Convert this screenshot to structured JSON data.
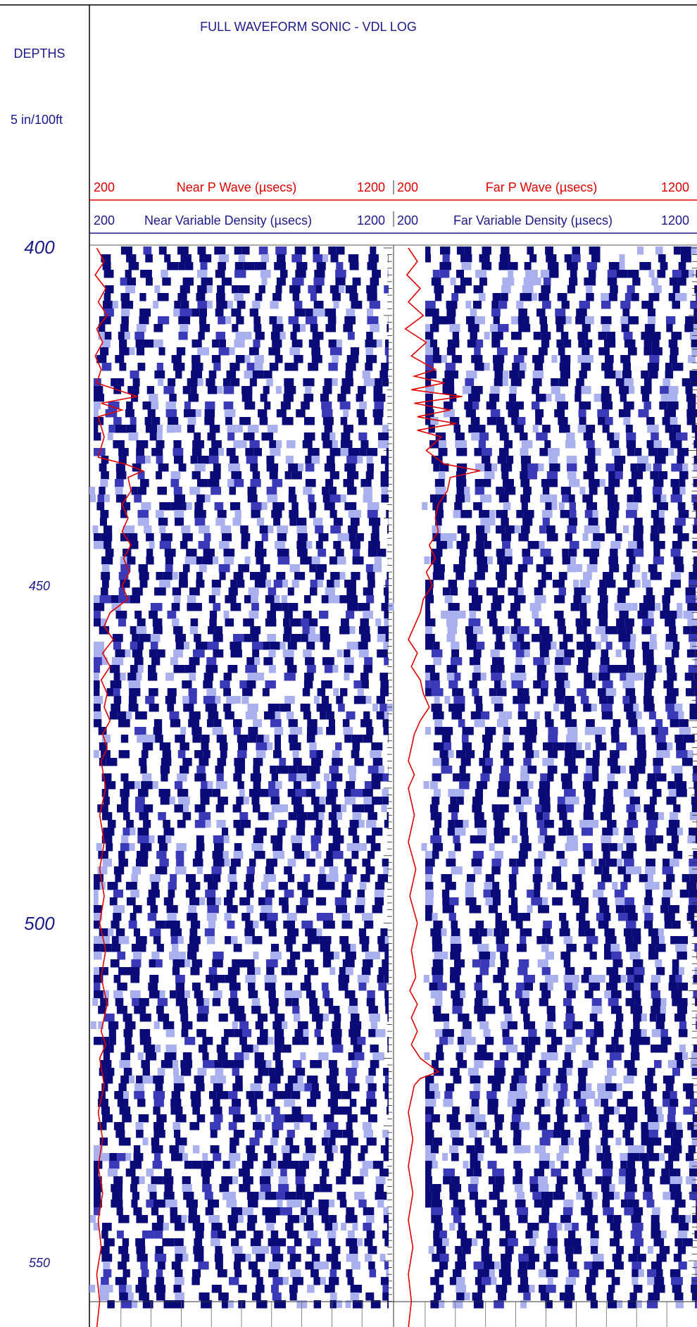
{
  "header": {
    "title": "FULL WAVEFORM SONIC - VDL LOG",
    "depths_label": "DEPTHS",
    "scale_label": "5 in/100ft"
  },
  "colors": {
    "blue": "#1a1a8c",
    "red": "#e00000",
    "vdl_dark": "#0a0a78",
    "vdl_mid": "#3a3ab8",
    "vdl_light": "#aab0ee"
  },
  "chart_data": {
    "type": "vdl_log",
    "title": "FULL WAVEFORM SONIC - VDL LOG",
    "depth_unit_scale": "5 in/100ft",
    "depth_range": [
      400,
      560
    ],
    "depth_labels": [
      "400",
      "450",
      "500",
      "550"
    ],
    "tracks": [
      {
        "key": "near",
        "wave_curve": {
          "name": "Near P Wave (µsecs)",
          "min_label": "200",
          "max_label": "1200",
          "range": [
            200,
            1200
          ]
        },
        "vdl": {
          "name": "Near Variable Density (µsecs)",
          "min_label": "200",
          "max_label": "1200",
          "range": [
            200,
            1200
          ]
        },
        "wave_transit_time": [
          {
            "depth": 400,
            "value": 215
          },
          {
            "depth": 402,
            "value": 240
          },
          {
            "depth": 404,
            "value": 210
          },
          {
            "depth": 406,
            "value": 245
          },
          {
            "depth": 408,
            "value": 220
          },
          {
            "depth": 410,
            "value": 250
          },
          {
            "depth": 412,
            "value": 215
          },
          {
            "depth": 414,
            "value": 235
          },
          {
            "depth": 416,
            "value": 210
          },
          {
            "depth": 418,
            "value": 230
          },
          {
            "depth": 420,
            "value": 215
          },
          {
            "depth": 422,
            "value": 350
          },
          {
            "depth": 423,
            "value": 230
          },
          {
            "depth": 424,
            "value": 300
          },
          {
            "depth": 425,
            "value": 220
          },
          {
            "depth": 428,
            "value": 240
          },
          {
            "depth": 431,
            "value": 220
          },
          {
            "depth": 432,
            "value": 310
          },
          {
            "depth": 433,
            "value": 370
          },
          {
            "depth": 434,
            "value": 320
          },
          {
            "depth": 436,
            "value": 330
          },
          {
            "depth": 438,
            "value": 300
          },
          {
            "depth": 440,
            "value": 320
          },
          {
            "depth": 442,
            "value": 300
          },
          {
            "depth": 444,
            "value": 330
          },
          {
            "depth": 446,
            "value": 305
          },
          {
            "depth": 448,
            "value": 325
          },
          {
            "depth": 450,
            "value": 300
          },
          {
            "depth": 452,
            "value": 320
          },
          {
            "depth": 454,
            "value": 260
          },
          {
            "depth": 456,
            "value": 240
          },
          {
            "depth": 458,
            "value": 270
          },
          {
            "depth": 460,
            "value": 235
          },
          {
            "depth": 462,
            "value": 260
          },
          {
            "depth": 464,
            "value": 230
          },
          {
            "depth": 466,
            "value": 250
          },
          {
            "depth": 468,
            "value": 240
          },
          {
            "depth": 470,
            "value": 260
          },
          {
            "depth": 472,
            "value": 235
          },
          {
            "depth": 474,
            "value": 250
          },
          {
            "depth": 476,
            "value": 230
          },
          {
            "depth": 480,
            "value": 245
          },
          {
            "depth": 484,
            "value": 225
          },
          {
            "depth": 488,
            "value": 240
          },
          {
            "depth": 492,
            "value": 225
          },
          {
            "depth": 496,
            "value": 240
          },
          {
            "depth": 500,
            "value": 225
          },
          {
            "depth": 504,
            "value": 245
          },
          {
            "depth": 508,
            "value": 230
          },
          {
            "depth": 512,
            "value": 250
          },
          {
            "depth": 516,
            "value": 230
          },
          {
            "depth": 518,
            "value": 245
          },
          {
            "depth": 520,
            "value": 225
          },
          {
            "depth": 524,
            "value": 240
          },
          {
            "depth": 528,
            "value": 220
          },
          {
            "depth": 532,
            "value": 235
          },
          {
            "depth": 536,
            "value": 220
          },
          {
            "depth": 540,
            "value": 235
          },
          {
            "depth": 544,
            "value": 220
          },
          {
            "depth": 548,
            "value": 230
          },
          {
            "depth": 552,
            "value": 215
          },
          {
            "depth": 556,
            "value": 225
          },
          {
            "depth": 560,
            "value": 215
          }
        ]
      },
      {
        "key": "far",
        "wave_curve": {
          "name": "Far P Wave (µsecs)",
          "min_label": "200",
          "max_label": "1200",
          "range": [
            200,
            1200
          ]
        },
        "vdl": {
          "name": "Far Variable Density (µsecs)",
          "min_label": "200",
          "max_label": "1200",
          "range": [
            200,
            1200
          ]
        },
        "wave_transit_time": [
          {
            "depth": 400,
            "value": 240
          },
          {
            "depth": 402,
            "value": 270
          },
          {
            "depth": 404,
            "value": 235
          },
          {
            "depth": 406,
            "value": 280
          },
          {
            "depth": 408,
            "value": 240
          },
          {
            "depth": 410,
            "value": 290
          },
          {
            "depth": 412,
            "value": 230
          },
          {
            "depth": 414,
            "value": 300
          },
          {
            "depth": 416,
            "value": 250
          },
          {
            "depth": 418,
            "value": 330
          },
          {
            "depth": 419,
            "value": 260
          },
          {
            "depth": 420,
            "value": 360
          },
          {
            "depth": 421,
            "value": 250
          },
          {
            "depth": 422,
            "value": 420
          },
          {
            "depth": 423,
            "value": 260
          },
          {
            "depth": 424,
            "value": 380
          },
          {
            "depth": 425,
            "value": 270
          },
          {
            "depth": 426,
            "value": 400
          },
          {
            "depth": 427,
            "value": 270
          },
          {
            "depth": 428,
            "value": 350
          },
          {
            "depth": 430,
            "value": 300
          },
          {
            "depth": 432,
            "value": 360
          },
          {
            "depth": 433,
            "value": 480
          },
          {
            "depth": 434,
            "value": 380
          },
          {
            "depth": 436,
            "value": 370
          },
          {
            "depth": 438,
            "value": 340
          },
          {
            "depth": 440,
            "value": 330
          },
          {
            "depth": 442,
            "value": 340
          },
          {
            "depth": 444,
            "value": 310
          },
          {
            "depth": 446,
            "value": 330
          },
          {
            "depth": 448,
            "value": 300
          },
          {
            "depth": 450,
            "value": 320
          },
          {
            "depth": 452,
            "value": 290
          },
          {
            "depth": 454,
            "value": 280
          },
          {
            "depth": 456,
            "value": 260
          },
          {
            "depth": 458,
            "value": 240
          },
          {
            "depth": 460,
            "value": 270
          },
          {
            "depth": 462,
            "value": 250
          },
          {
            "depth": 464,
            "value": 280
          },
          {
            "depth": 466,
            "value": 290
          },
          {
            "depth": 468,
            "value": 310
          },
          {
            "depth": 470,
            "value": 280
          },
          {
            "depth": 472,
            "value": 260
          },
          {
            "depth": 474,
            "value": 250
          },
          {
            "depth": 476,
            "value": 240
          },
          {
            "depth": 478,
            "value": 260
          },
          {
            "depth": 480,
            "value": 240
          },
          {
            "depth": 484,
            "value": 260
          },
          {
            "depth": 488,
            "value": 240
          },
          {
            "depth": 492,
            "value": 265
          },
          {
            "depth": 496,
            "value": 245
          },
          {
            "depth": 500,
            "value": 270
          },
          {
            "depth": 504,
            "value": 250
          },
          {
            "depth": 508,
            "value": 265
          },
          {
            "depth": 510,
            "value": 245
          },
          {
            "depth": 512,
            "value": 270
          },
          {
            "depth": 514,
            "value": 250
          },
          {
            "depth": 516,
            "value": 270
          },
          {
            "depth": 518,
            "value": 250
          },
          {
            "depth": 520,
            "value": 280
          },
          {
            "depth": 522,
            "value": 340
          },
          {
            "depth": 523,
            "value": 280
          },
          {
            "depth": 524,
            "value": 260
          },
          {
            "depth": 526,
            "value": 250
          },
          {
            "depth": 528,
            "value": 240
          },
          {
            "depth": 532,
            "value": 255
          },
          {
            "depth": 536,
            "value": 240
          },
          {
            "depth": 540,
            "value": 255
          },
          {
            "depth": 544,
            "value": 240
          },
          {
            "depth": 548,
            "value": 255
          },
          {
            "depth": 552,
            "value": 240
          },
          {
            "depth": 556,
            "value": 250
          },
          {
            "depth": 560,
            "value": 240
          }
        ]
      }
    ]
  }
}
